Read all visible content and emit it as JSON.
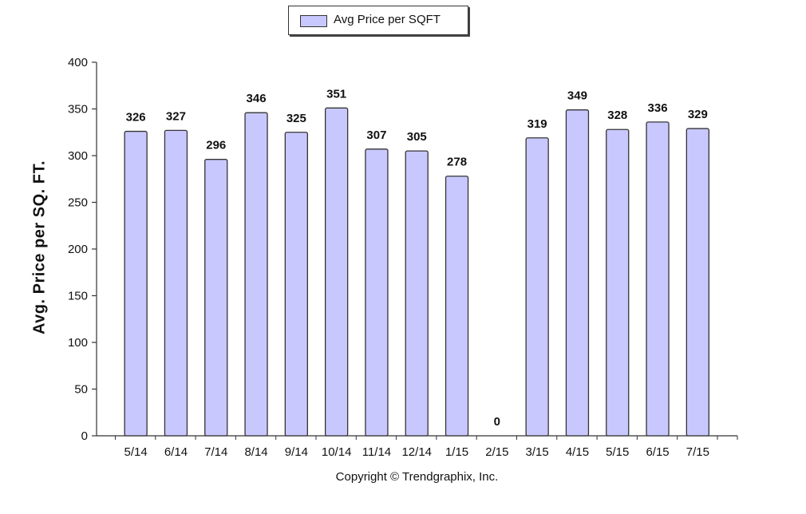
{
  "chart_data": {
    "type": "bar",
    "categories": [
      "5/14",
      "6/14",
      "7/14",
      "8/14",
      "9/14",
      "10/14",
      "11/14",
      "12/14",
      "1/15",
      "2/15",
      "3/15",
      "4/15",
      "5/15",
      "6/15",
      "7/15"
    ],
    "series": [
      {
        "name": "Avg Price per SQFT",
        "values": [
          326,
          327,
          296,
          346,
          325,
          351,
          307,
          305,
          278,
          0,
          319,
          349,
          328,
          336,
          329
        ]
      }
    ],
    "data_labels": [
      "326",
      "327",
      "296",
      "346",
      "325",
      "351",
      "307",
      "305",
      "278",
      "0",
      "319",
      "349",
      "328",
      "336",
      "329"
    ],
    "ylabel": "Avg. Price per SQ. FT.",
    "xlabel": "",
    "ylim": [
      0,
      400
    ],
    "yticks": [
      0,
      50,
      100,
      150,
      200,
      250,
      300,
      350,
      400
    ],
    "legend": "top-center",
    "grid": false,
    "bar_color": "#c8c8ff",
    "bar_edge_color": "#333333"
  },
  "footer": {
    "copyright": "Copyright © Trendgraphix, Inc."
  }
}
